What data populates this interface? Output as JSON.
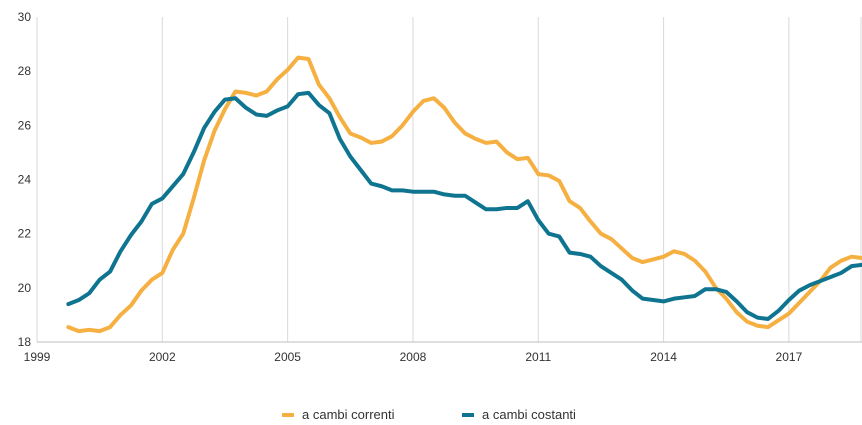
{
  "chart_data": {
    "type": "line",
    "title": "",
    "xlabel": "",
    "ylabel": "",
    "xlim": [
      1999,
      2018.75
    ],
    "ylim": [
      18,
      30
    ],
    "x_ticks": [
      "1999",
      "2002",
      "2005",
      "2008",
      "2011",
      "2014",
      "2017"
    ],
    "y_ticks": [
      "18",
      "20",
      "22",
      "24",
      "26",
      "28",
      "30"
    ],
    "grid": "vertical",
    "legend_position": "bottom",
    "series": [
      {
        "name": "a cambi correnti",
        "color": "#F5B041",
        "x": [
          1999.75,
          2000.0,
          2000.25,
          2000.5,
          2000.75,
          2001.0,
          2001.25,
          2001.5,
          2001.75,
          2002.0,
          2002.25,
          2002.5,
          2002.75,
          2003.0,
          2003.25,
          2003.5,
          2003.75,
          2004.0,
          2004.25,
          2004.5,
          2004.75,
          2005.0,
          2005.25,
          2005.5,
          2005.75,
          2006.0,
          2006.25,
          2006.5,
          2006.75,
          2007.0,
          2007.25,
          2007.5,
          2007.75,
          2008.0,
          2008.25,
          2008.5,
          2008.75,
          2009.0,
          2009.25,
          2009.5,
          2009.75,
          2010.0,
          2010.25,
          2010.5,
          2010.75,
          2011.0,
          2011.25,
          2011.5,
          2011.75,
          2012.0,
          2012.25,
          2012.5,
          2012.75,
          2013.0,
          2013.25,
          2013.5,
          2013.75,
          2014.0,
          2014.25,
          2014.5,
          2014.75,
          2015.0,
          2015.25,
          2015.5,
          2015.75,
          2016.0,
          2016.25,
          2016.5,
          2016.75,
          2017.0,
          2017.25,
          2017.5,
          2017.75,
          2018.0,
          2018.25,
          2018.5,
          2018.75
        ],
        "values": [
          18.55,
          18.4,
          18.45,
          18.4,
          18.55,
          19.0,
          19.35,
          19.9,
          20.3,
          20.55,
          21.4,
          22.0,
          23.3,
          24.7,
          25.8,
          26.6,
          27.25,
          27.2,
          27.1,
          27.25,
          27.7,
          28.05,
          28.5,
          28.45,
          27.5,
          27.0,
          26.3,
          25.7,
          25.55,
          25.35,
          25.4,
          25.6,
          26.0,
          26.5,
          26.9,
          27.0,
          26.65,
          26.1,
          25.7,
          25.5,
          25.35,
          25.4,
          25.0,
          24.75,
          24.8,
          24.2,
          24.15,
          23.95,
          23.2,
          22.95,
          22.45,
          22.0,
          21.8,
          21.45,
          21.1,
          20.95,
          21.05,
          21.15,
          21.35,
          21.25,
          21.0,
          20.6,
          20.0,
          19.6,
          19.1,
          18.75,
          18.6,
          18.55,
          18.8,
          19.05,
          19.45,
          19.85,
          20.25,
          20.75,
          21.0,
          21.15,
          21.1
        ]
      },
      {
        "name": "a cambi costanti",
        "color": "#0E7490",
        "x": [
          1999.75,
          2000.0,
          2000.25,
          2000.5,
          2000.75,
          2001.0,
          2001.25,
          2001.5,
          2001.75,
          2002.0,
          2002.25,
          2002.5,
          2002.75,
          2003.0,
          2003.25,
          2003.5,
          2003.75,
          2004.0,
          2004.25,
          2004.5,
          2004.75,
          2005.0,
          2005.25,
          2005.5,
          2005.75,
          2006.0,
          2006.25,
          2006.5,
          2006.75,
          2007.0,
          2007.25,
          2007.5,
          2007.75,
          2008.0,
          2008.25,
          2008.5,
          2008.75,
          2009.0,
          2009.25,
          2009.5,
          2009.75,
          2010.0,
          2010.25,
          2010.5,
          2010.75,
          2011.0,
          2011.25,
          2011.5,
          2011.75,
          2012.0,
          2012.25,
          2012.5,
          2012.75,
          2013.0,
          2013.25,
          2013.5,
          2013.75,
          2014.0,
          2014.25,
          2014.5,
          2014.75,
          2015.0,
          2015.25,
          2015.5,
          2015.75,
          2016.0,
          2016.25,
          2016.5,
          2016.75,
          2017.0,
          2017.25,
          2017.5,
          2017.75,
          2018.0,
          2018.25,
          2018.5,
          2018.75
        ],
        "values": [
          19.4,
          19.55,
          19.8,
          20.3,
          20.6,
          21.35,
          21.95,
          22.45,
          23.1,
          23.3,
          23.75,
          24.2,
          25.0,
          25.9,
          26.5,
          26.95,
          27.0,
          26.65,
          26.4,
          26.35,
          26.55,
          26.7,
          27.15,
          27.2,
          26.75,
          26.45,
          25.5,
          24.85,
          24.35,
          23.85,
          23.75,
          23.6,
          23.6,
          23.55,
          23.55,
          23.55,
          23.45,
          23.4,
          23.4,
          23.15,
          22.9,
          22.9,
          22.95,
          22.95,
          23.2,
          22.5,
          22.0,
          21.9,
          21.3,
          21.25,
          21.15,
          20.8,
          20.55,
          20.3,
          19.9,
          19.6,
          19.55,
          19.5,
          19.6,
          19.65,
          19.7,
          19.95,
          19.95,
          19.85,
          19.5,
          19.1,
          18.9,
          18.85,
          19.15,
          19.55,
          19.9,
          20.1,
          20.25,
          20.4,
          20.55,
          20.8,
          20.85
        ]
      }
    ]
  }
}
